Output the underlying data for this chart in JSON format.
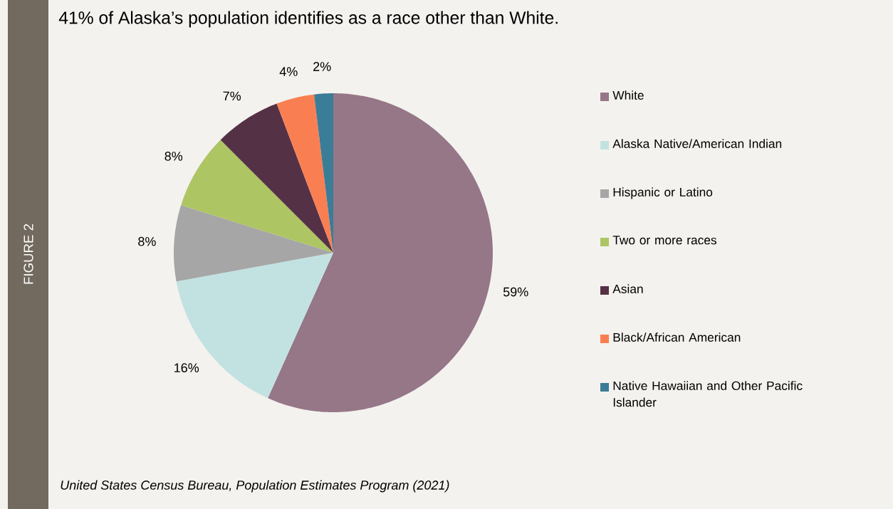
{
  "chart_data": {
    "type": "pie",
    "title": "41% of Alaska’s population identifies as a race other than White.",
    "categories": [
      "White",
      "Alaska Native/American Indian",
      "Hispanic or Latino",
      "Two or more races",
      "Asian",
      "Black/African American",
      "Native Hawaiian and Other Pacific Islander"
    ],
    "values": [
      59,
      16,
      8,
      8,
      7,
      4,
      2
    ],
    "value_labels": [
      "59%",
      "16%",
      "8%",
      "8%",
      "7%",
      "4%",
      "2%"
    ],
    "colors": [
      "#957788",
      "#c2e2e2",
      "#a6a6a6",
      "#aec564",
      "#553145",
      "#f97f52",
      "#3b7c97"
    ],
    "legend": "right",
    "annotations": [
      "FIGURE 2",
      "United States Census Bureau, Population Estimates Program (2021)"
    ]
  }
}
